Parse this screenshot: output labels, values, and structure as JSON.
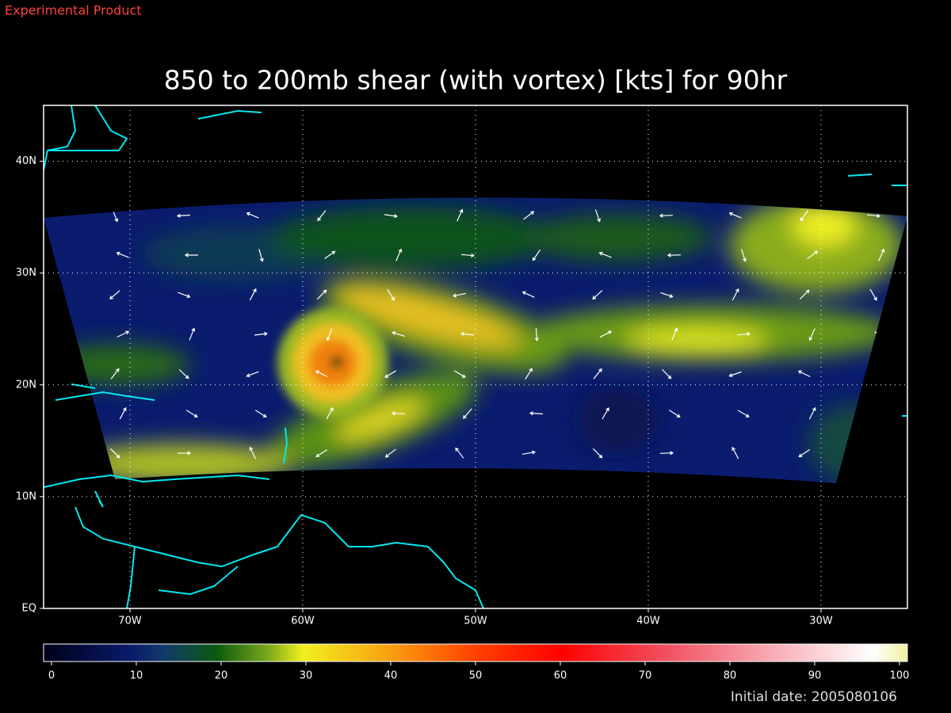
{
  "header": {
    "label": "Experimental Product"
  },
  "title": "850 to 200mb shear (with vortex) [kts] for 90hr",
  "map": {
    "xlim": [
      -75,
      -25
    ],
    "ylim": [
      0,
      45
    ],
    "yticks": [
      {
        "value": 0,
        "label": "EQ"
      },
      {
        "value": 10,
        "label": "10N"
      },
      {
        "value": 20,
        "label": "20N"
      },
      {
        "value": 30,
        "label": "30N"
      },
      {
        "value": 40,
        "label": "40N"
      }
    ],
    "xticks": [
      {
        "value": -70,
        "label": "70W"
      },
      {
        "value": -60,
        "label": "60W"
      },
      {
        "value": -50,
        "label": "50W"
      },
      {
        "value": -40,
        "label": "40W"
      },
      {
        "value": -30,
        "label": "30W"
      }
    ]
  },
  "colorbar": {
    "lim": [
      0,
      100
    ],
    "ticks": [
      0,
      10,
      20,
      30,
      40,
      50,
      60,
      70,
      80,
      90,
      100
    ]
  },
  "footer": {
    "label": "Initial date: 2005080106"
  }
}
